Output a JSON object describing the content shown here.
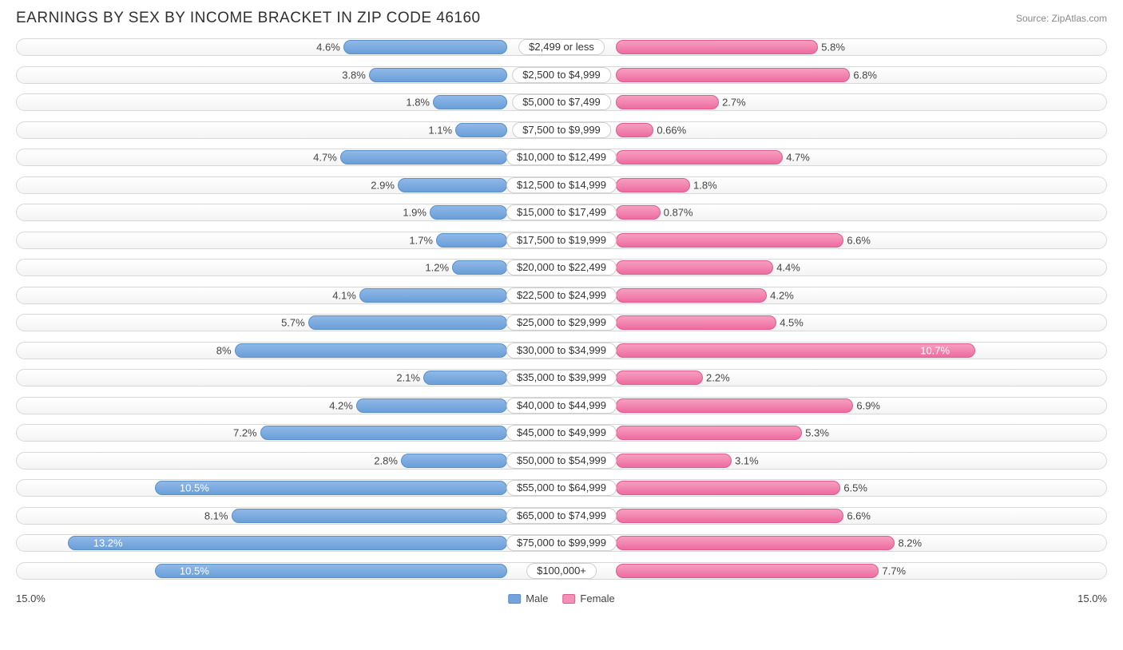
{
  "title": "EARNINGS BY SEX BY INCOME BRACKET IN ZIP CODE 46160",
  "source": "Source: ZipAtlas.com",
  "axis_max_label": "15.0%",
  "axis_max": 15.0,
  "legend": {
    "male": "Male",
    "female": "Female"
  },
  "colors": {
    "male_fill": "#72a3db",
    "female_fill": "#f290b8",
    "track_border": "#d8d8d8",
    "text": "#333333"
  },
  "label_width_ratio": 0.12,
  "inside_threshold": 9.5,
  "rows": [
    {
      "label": "$2,499 or less",
      "male": 4.6,
      "female": 5.8
    },
    {
      "label": "$2,500 to $4,999",
      "male": 3.8,
      "female": 6.8
    },
    {
      "label": "$5,000 to $7,499",
      "male": 1.8,
      "female": 2.7
    },
    {
      "label": "$7,500 to $9,999",
      "male": 1.1,
      "female": 0.66
    },
    {
      "label": "$10,000 to $12,499",
      "male": 4.7,
      "female": 4.7
    },
    {
      "label": "$12,500 to $14,999",
      "male": 2.9,
      "female": 1.8
    },
    {
      "label": "$15,000 to $17,499",
      "male": 1.9,
      "female": 0.87
    },
    {
      "label": "$17,500 to $19,999",
      "male": 1.7,
      "female": 6.6
    },
    {
      "label": "$20,000 to $22,499",
      "male": 1.2,
      "female": 4.4
    },
    {
      "label": "$22,500 to $24,999",
      "male": 4.1,
      "female": 4.2
    },
    {
      "label": "$25,000 to $29,999",
      "male": 5.7,
      "female": 4.5
    },
    {
      "label": "$30,000 to $34,999",
      "male": 8.0,
      "female": 10.7
    },
    {
      "label": "$35,000 to $39,999",
      "male": 2.1,
      "female": 2.2
    },
    {
      "label": "$40,000 to $44,999",
      "male": 4.2,
      "female": 6.9
    },
    {
      "label": "$45,000 to $49,999",
      "male": 7.2,
      "female": 5.3
    },
    {
      "label": "$50,000 to $54,999",
      "male": 2.8,
      "female": 3.1
    },
    {
      "label": "$55,000 to $64,999",
      "male": 10.5,
      "female": 6.5
    },
    {
      "label": "$65,000 to $74,999",
      "male": 8.1,
      "female": 6.6
    },
    {
      "label": "$75,000 to $99,999",
      "male": 13.2,
      "female": 8.2
    },
    {
      "label": "$100,000+",
      "male": 10.5,
      "female": 7.7
    }
  ]
}
